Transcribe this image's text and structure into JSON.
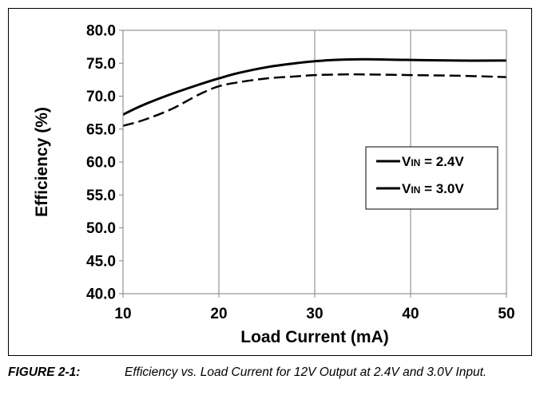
{
  "chart_data": {
    "type": "line",
    "title": "",
    "xlabel": "Load Current (mA)",
    "ylabel": "Efficiency (%)",
    "xlim": [
      10,
      50
    ],
    "ylim": [
      40.0,
      80.0
    ],
    "xticks": [
      "10",
      "20",
      "30",
      "40",
      "50"
    ],
    "yticks": [
      "40.0",
      "45.0",
      "50.0",
      "55.0",
      "60.0",
      "65.0",
      "70.0",
      "75.0",
      "80.0"
    ],
    "grid": "vertical",
    "legend_position": "center-right",
    "series": [
      {
        "name": "VIN = 2.4V",
        "legend_main": "V",
        "legend_sub": "IN",
        "legend_rest": " = 2.4V",
        "style": "dashed",
        "x": [
          10,
          12,
          15,
          18,
          20,
          22,
          25,
          28,
          30,
          33,
          35,
          40,
          45,
          50
        ],
        "y": [
          65.5,
          66.3,
          68.0,
          70.3,
          71.5,
          72.1,
          72.7,
          73.0,
          73.2,
          73.3,
          73.3,
          73.2,
          73.1,
          72.9
        ]
      },
      {
        "name": "VIN = 3.0V",
        "legend_main": "V",
        "legend_sub": "IN",
        "legend_rest": " = 3.0V",
        "style": "solid",
        "x": [
          10,
          12,
          15,
          18,
          20,
          22,
          25,
          28,
          30,
          32,
          35,
          40,
          45,
          50
        ],
        "y": [
          67.2,
          68.6,
          70.3,
          71.8,
          72.7,
          73.5,
          74.4,
          75.0,
          75.3,
          75.5,
          75.6,
          75.5,
          75.4,
          75.4
        ]
      }
    ]
  },
  "caption": {
    "label": "FIGURE 2-1:",
    "text": "Efficiency vs. Load Current for 12V Output at 2.4V and 3.0V Input."
  }
}
